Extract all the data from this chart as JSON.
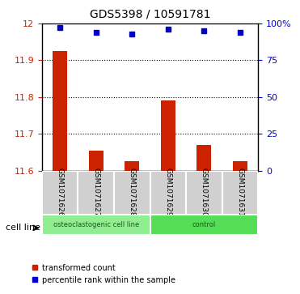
{
  "title": "GDS5398 / 10591781",
  "samples": [
    "GSM1071626",
    "GSM1071627",
    "GSM1071628",
    "GSM1071629",
    "GSM1071630",
    "GSM1071631"
  ],
  "red_values": [
    11.925,
    11.655,
    11.625,
    11.79,
    11.67,
    11.625
  ],
  "blue_values": [
    97,
    94,
    93,
    96,
    95,
    94
  ],
  "ylim_left": [
    11.6,
    12.0
  ],
  "ylim_right": [
    0,
    100
  ],
  "yticks_left": [
    11.6,
    11.7,
    11.8,
    11.9,
    12.0
  ],
  "yticks_right": [
    0,
    25,
    50,
    75,
    100
  ],
  "ytick_labels_right": [
    "0",
    "25",
    "50",
    "75",
    "100%"
  ],
  "group_labels": [
    "osteoclastogenic cell line",
    "control"
  ],
  "group_ranges": [
    [
      0,
      3
    ],
    [
      3,
      6
    ]
  ],
  "group_colors": [
    "#90EE90",
    "#4CAF50"
  ],
  "cell_line_label": "cell line",
  "legend_red": "transformed count",
  "legend_blue": "percentile rank within the sample",
  "bar_color": "#cc2200",
  "dot_color": "#0000cc",
  "bar_width": 0.4,
  "base_value": 11.6
}
